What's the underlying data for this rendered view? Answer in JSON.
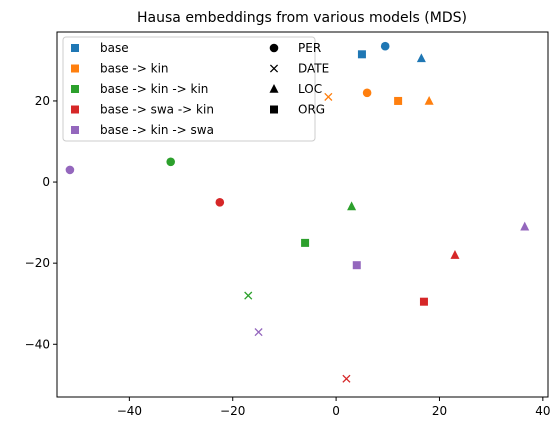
{
  "chart_data": {
    "type": "scatter",
    "title": "Hausa embeddings from various models (MDS)",
    "xlabel": "",
    "ylabel": "",
    "xlim": [
      -54,
      41
    ],
    "ylim": [
      -53,
      37
    ],
    "xticks": [
      -40,
      -20,
      0,
      20,
      40
    ],
    "yticks": [
      -40,
      -20,
      0,
      20
    ],
    "grid": false,
    "legend_placement": "top-left",
    "series": [
      {
        "name": "base",
        "color": "#1f77b4",
        "points": [
          {
            "type": "PER",
            "x": 9.5,
            "y": 33.5
          },
          {
            "type": "ORG",
            "x": 5.0,
            "y": 31.5
          },
          {
            "type": "LOC",
            "x": 16.5,
            "y": 30.5
          }
        ]
      },
      {
        "name": "base -> kin",
        "color": "#ff7f0e",
        "points": [
          {
            "type": "PER",
            "x": 6.0,
            "y": 22.0
          },
          {
            "type": "DATE",
            "x": -1.5,
            "y": 21.0
          },
          {
            "type": "ORG",
            "x": 12.0,
            "y": 20.0
          },
          {
            "type": "LOC",
            "x": 18.0,
            "y": 20.0
          }
        ]
      },
      {
        "name": "base -> kin -> kin",
        "color": "#2ca02c",
        "points": [
          {
            "type": "PER",
            "x": -32.0,
            "y": 5.0
          },
          {
            "type": "LOC",
            "x": 3.0,
            "y": -6.0
          },
          {
            "type": "ORG",
            "x": -6.0,
            "y": -15.0
          },
          {
            "type": "DATE",
            "x": -17.0,
            "y": -28.0
          }
        ]
      },
      {
        "name": "base -> swa -> kin",
        "color": "#d62728",
        "points": [
          {
            "type": "PER",
            "x": -22.5,
            "y": -5.0
          },
          {
            "type": "LOC",
            "x": 23.0,
            "y": -18.0
          },
          {
            "type": "ORG",
            "x": 17.0,
            "y": -29.5
          },
          {
            "type": "DATE",
            "x": 2.0,
            "y": -48.5
          }
        ]
      },
      {
        "name": "base -> kin -> swa",
        "color": "#9467bd",
        "points": [
          {
            "type": "PER",
            "x": -51.5,
            "y": 3.0
          },
          {
            "type": "LOC",
            "x": 36.5,
            "y": -11.0
          },
          {
            "type": "ORG",
            "x": 4.0,
            "y": -20.5
          },
          {
            "type": "DATE",
            "x": -15.0,
            "y": -37.0
          }
        ]
      }
    ],
    "legend": {
      "models": [
        "base",
        "base -> kin",
        "base -> kin -> kin",
        "base -> swa -> kin",
        "base -> kin -> swa"
      ],
      "types": [
        {
          "label": "PER",
          "marker": "circle"
        },
        {
          "label": "DATE",
          "marker": "x"
        },
        {
          "label": "LOC",
          "marker": "triangle"
        },
        {
          "label": "ORG",
          "marker": "square"
        }
      ]
    }
  }
}
